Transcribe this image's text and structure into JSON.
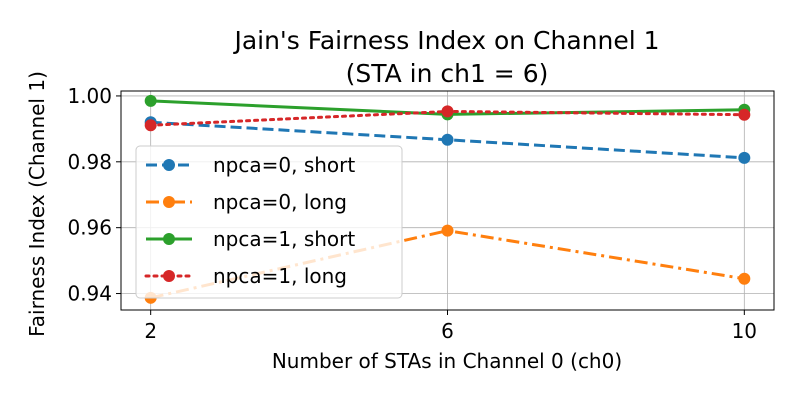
{
  "chart_data": {
    "type": "line",
    "title": "Jain's Fairness Index on Channel 1",
    "subtitle": "(STA in ch1 = 6)",
    "xlabel": "Number of STAs in Channel 0 (ch0)",
    "ylabel": "Fairness Index (Channel 1)",
    "x": [
      2,
      6,
      10
    ],
    "xticks": [
      "2",
      "6",
      "10"
    ],
    "yticks": [
      "0.94",
      "0.96",
      "0.98",
      "1.00"
    ],
    "ytick_values": [
      0.94,
      0.96,
      0.98,
      1.0
    ],
    "xlim": [
      1.6,
      10.4
    ],
    "ylim": [
      0.935,
      1.0015
    ],
    "grid": true,
    "legend_position": "center-left",
    "series": [
      {
        "name": "npca=0, short",
        "values": [
          0.992,
          0.9867,
          0.9812
        ],
        "color": "#1f77b4",
        "dash": "dashed"
      },
      {
        "name": "npca=0, long",
        "values": [
          0.9387,
          0.9591,
          0.9445
        ],
        "color": "#ff7f0e",
        "dash": "dashdot"
      },
      {
        "name": "npca=1, short",
        "values": [
          0.9985,
          0.9944,
          0.9958
        ],
        "color": "#2ca02c",
        "dash": "solid"
      },
      {
        "name": "npca=1, long",
        "values": [
          0.9911,
          0.9953,
          0.9943
        ],
        "color": "#d62728",
        "dash": "dotted"
      }
    ]
  }
}
